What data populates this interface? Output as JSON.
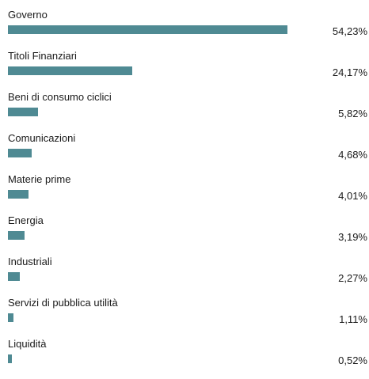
{
  "chart_data": {
    "type": "bar",
    "orientation": "horizontal",
    "categories": [
      "Governo",
      "Titoli Finanziari",
      "Beni di consumo ciclici",
      "Comunicazioni",
      "Materie prime",
      "Energia",
      "Industriali",
      "Servizi di pubblica utilità",
      "Liquidità"
    ],
    "values": [
      54.23,
      24.17,
      5.82,
      4.68,
      4.01,
      3.19,
      2.27,
      1.11,
      0.52
    ],
    "value_labels": [
      "54,23%",
      "24,17%",
      "5,82%",
      "4,68%",
      "4,01%",
      "3,19%",
      "2,27%",
      "1,11%",
      "0,52%"
    ],
    "bar_color": "#4f8a93",
    "xlim": [
      0,
      54.23
    ],
    "grid": false
  }
}
